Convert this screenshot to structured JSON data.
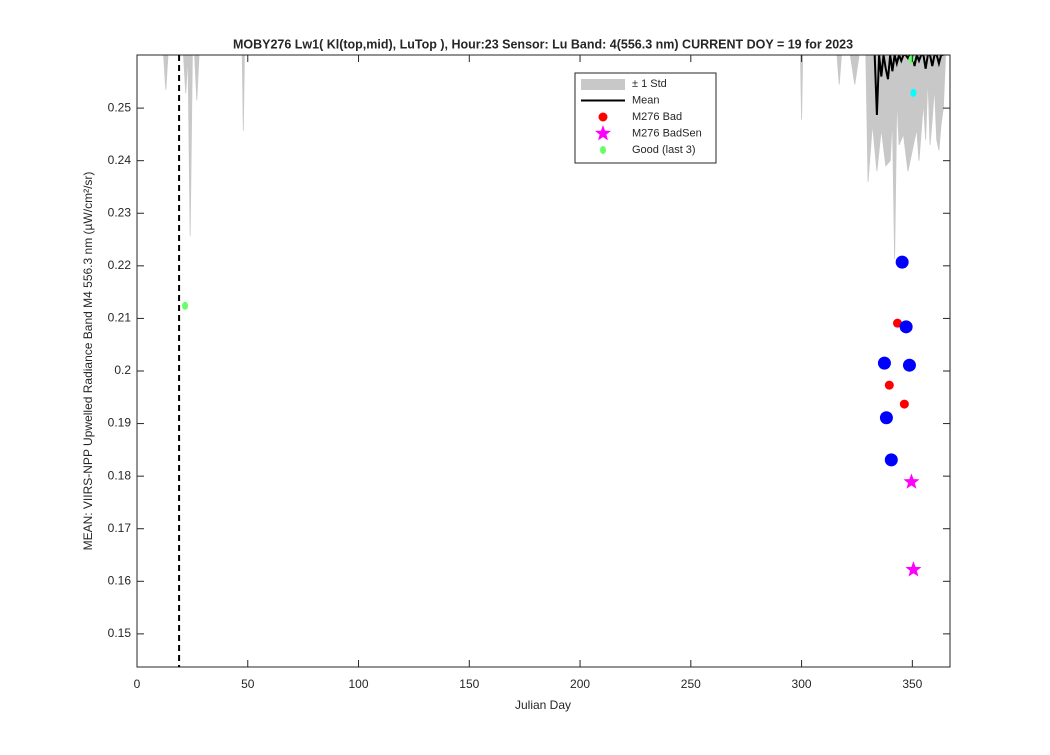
{
  "chart_data": {
    "type": "scatter",
    "title": "MOBY276   Lw1( Kl(top,mid), LuTop ),   Hour:23 Sensor: Lu Band: 4(556.3 nm)   CURRENT DOY = 19 for 2023",
    "x_label": "Julian Day",
    "y_label": "MEAN: VIIRS-NPP Upwelled Radiance Band M4 556.3 nm (µW/cm²/sr)",
    "xlim": [
      0,
      367
    ],
    "ylim": [
      0.1437,
      0.2601
    ],
    "xticks": [
      0,
      50,
      100,
      150,
      200,
      250,
      300,
      350
    ],
    "yticks": [
      0.15,
      0.16,
      0.17,
      0.18,
      0.19,
      0.2,
      0.21,
      0.22,
      0.23,
      0.24,
      0.25
    ],
    "current_doy_line": 19,
    "legend": "top-right",
    "series": [
      {
        "name": "± 1 Std",
        "color": "#c8c8c8",
        "kind": "band",
        "x": [
          12,
          13,
          14,
          null,
          21,
          22,
          23,
          24,
          25,
          26,
          27,
          28,
          null,
          47.5,
          48,
          48.5,
          null,
          299.5,
          300,
          300.5,
          null,
          316,
          317,
          318,
          null,
          322,
          324,
          326,
          329,
          330,
          332,
          334,
          336,
          338,
          340,
          341,
          342,
          343,
          344,
          346,
          348,
          350,
          352,
          353,
          355,
          356,
          357,
          358,
          359,
          360,
          361,
          362,
          363,
          364,
          365
        ],
        "values": [
          0.2601,
          0.2535,
          0.2601,
          null,
          0.2601,
          0.2528,
          0.2601,
          0.2257,
          0.2601,
          0.2601,
          0.2515,
          0.2601,
          null,
          0.2601,
          0.2457,
          0.2601,
          null,
          0.2601,
          0.2478,
          0.2601,
          null,
          0.2601,
          0.2545,
          0.2601,
          null,
          0.2601,
          0.2545,
          0.2601,
          0.2601,
          0.236,
          0.247,
          0.238,
          0.246,
          0.239,
          0.24,
          0.248,
          0.2213,
          0.252,
          0.243,
          0.245,
          0.238,
          0.242,
          0.246,
          0.24,
          0.251,
          0.244,
          0.256,
          0.243,
          0.248,
          0.254,
          0.244,
          0.242,
          0.247,
          0.25,
          0.2601
        ]
      },
      {
        "name": "Mean",
        "color": "#000000",
        "kind": "line",
        "x": [
          333,
          334,
          335,
          336,
          337,
          338,
          339,
          340,
          341,
          342,
          343,
          344,
          345,
          346,
          347,
          348,
          349,
          350,
          351,
          352,
          353,
          354,
          355,
          356,
          357,
          358,
          359,
          360,
          361,
          362,
          363,
          364
        ],
        "values": [
          0.2601,
          0.2487,
          0.2601,
          0.256,
          0.2601,
          0.2575,
          0.2555,
          0.2601,
          0.257,
          0.2601,
          0.2585,
          0.2601,
          0.259,
          0.2601,
          0.2601,
          0.2595,
          0.2601,
          0.2601,
          0.258,
          0.2601,
          0.259,
          0.2601,
          0.2601,
          0.2575,
          0.2601,
          0.2601,
          0.258,
          0.2601,
          0.2601,
          0.2585,
          0.2601,
          0.2601
        ]
      },
      {
        "name": "M276 Bad",
        "color": "#ff0000",
        "kind": "dot",
        "x": [
          343.3,
          339.6,
          346.4
        ],
        "values": [
          0.2091,
          0.1973,
          0.1937
        ]
      },
      {
        "name": "M276 BadSen",
        "color": "#ff00ff",
        "kind": "star",
        "x": [
          349.6,
          350.5
        ],
        "values": [
          0.1789,
          0.1622
        ]
      },
      {
        "name": "Good (last 3)",
        "color": "#66ff66",
        "kind": "smalldot",
        "x": [
          21.7,
          349.6
        ],
        "values": [
          0.2124,
          0.2593
        ]
      },
      {
        "color": "#0000ff",
        "kind": "bigdot",
        "x": [
          337.4,
          338.3,
          340.5,
          345.4,
          347.2,
          348.7
        ],
        "values": [
          0.2015,
          0.1911,
          0.1831,
          0.2207,
          0.2084,
          0.2011
        ]
      },
      {
        "color": "#00ffff",
        "kind": "smalldot",
        "x": [
          350.5
        ],
        "values": [
          0.2529
        ]
      }
    ]
  }
}
